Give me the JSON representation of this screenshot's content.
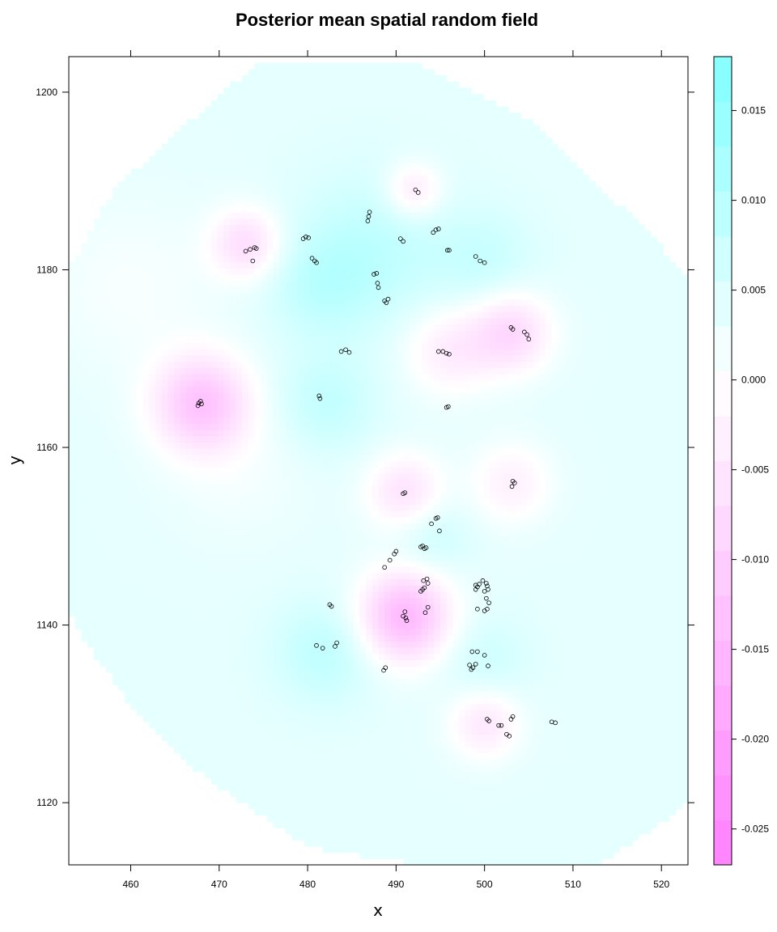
{
  "chart_data": {
    "type": "heatmap",
    "title": "Posterior mean spatial random field",
    "xlabel": "x",
    "ylabel": "y",
    "xlim": [
      453,
      523
    ],
    "ylim": [
      1113,
      1204
    ],
    "x_ticks": [
      460,
      470,
      480,
      490,
      500,
      510,
      520
    ],
    "y_ticks": [
      1120,
      1140,
      1160,
      1180,
      1200
    ],
    "colorbar": {
      "range": [
        -0.027,
        0.018
      ],
      "ticks": [
        0.015,
        0.01,
        0.005,
        0.0,
        -0.005,
        -0.01,
        -0.015,
        -0.02,
        -0.025
      ],
      "tick_labels": [
        "0.015",
        "0.010",
        "0.005",
        "0.000",
        "-0.005",
        "-0.010",
        "-0.015",
        "-0.020",
        "-0.025"
      ],
      "low_color": "#ff80ff",
      "mid_color": "#ffffff",
      "high_color": "#80ffff"
    },
    "domain_polygon": [
      [
        474,
        1203
      ],
      [
        493,
        1203
      ],
      [
        505,
        1197
      ],
      [
        512,
        1190
      ],
      [
        518,
        1185
      ],
      [
        523,
        1179
      ],
      [
        523,
        1120
      ],
      [
        519,
        1117
      ],
      [
        513,
        1113
      ],
      [
        493,
        1113
      ],
      [
        480,
        1115
      ],
      [
        474,
        1119
      ],
      [
        467,
        1124
      ],
      [
        460,
        1131
      ],
      [
        455,
        1138
      ],
      [
        453,
        1142
      ],
      [
        453,
        1180
      ],
      [
        458,
        1189
      ],
      [
        467,
        1197
      ]
    ],
    "field": {
      "background": 0.0035,
      "features": [
        {
          "x": 468,
          "y": 1165,
          "amp": -0.0155,
          "radius": 3.8
        },
        {
          "x": 491,
          "y": 1141,
          "amp": -0.0185,
          "radius": 3.6
        },
        {
          "x": 503,
          "y": 1173,
          "amp": -0.0115,
          "radius": 3.2
        },
        {
          "x": 496,
          "y": 1171,
          "amp": -0.0075,
          "radius": 3.5
        },
        {
          "x": 473,
          "y": 1183,
          "amp": -0.0105,
          "radius": 2.8
        },
        {
          "x": 492,
          "y": 1189,
          "amp": -0.0085,
          "radius": 2.2
        },
        {
          "x": 491,
          "y": 1155,
          "amp": -0.0095,
          "radius": 3.0
        },
        {
          "x": 503,
          "y": 1156,
          "amp": -0.0065,
          "radius": 3.2
        },
        {
          "x": 500,
          "y": 1129,
          "amp": -0.0085,
          "radius": 2.8
        },
        {
          "x": 487,
          "y": 1182,
          "amp": 0.0055,
          "radius": 6.0
        },
        {
          "x": 481,
          "y": 1178,
          "amp": 0.004,
          "radius": 4.0
        },
        {
          "x": 482,
          "y": 1165,
          "amp": 0.005,
          "radius": 4.0
        },
        {
          "x": 500,
          "y": 1181,
          "amp": 0.004,
          "radius": 4.0
        },
        {
          "x": 482,
          "y": 1137,
          "amp": 0.0055,
          "radius": 4.0
        },
        {
          "x": 500,
          "y": 1136,
          "amp": 0.0035,
          "radius": 3.5
        },
        {
          "x": 494,
          "y": 1150,
          "amp": 0.004,
          "radius": 3.0
        },
        {
          "x": 460,
          "y": 1178,
          "amp": -0.0025,
          "radius": 7.0
        },
        {
          "x": 472,
          "y": 1158,
          "amp": -0.002,
          "radius": 6.0
        }
      ]
    },
    "points": [
      [
        492.2,
        1189.0
      ],
      [
        492.5,
        1188.7
      ],
      [
        487.0,
        1186.5
      ],
      [
        486.9,
        1186.0
      ],
      [
        486.8,
        1185.5
      ],
      [
        479.5,
        1183.5
      ],
      [
        479.8,
        1183.7
      ],
      [
        480.1,
        1183.6
      ],
      [
        474.0,
        1182.5
      ],
      [
        473.5,
        1182.3
      ],
      [
        473.0,
        1182.1
      ],
      [
        474.2,
        1182.4
      ],
      [
        473.8,
        1181.0
      ],
      [
        480.5,
        1181.3
      ],
      [
        480.8,
        1181.0
      ],
      [
        481.0,
        1180.8
      ],
      [
        490.5,
        1183.5
      ],
      [
        490.8,
        1183.2
      ],
      [
        494.5,
        1184.5
      ],
      [
        494.2,
        1184.2
      ],
      [
        494.8,
        1184.6
      ],
      [
        495.8,
        1182.2
      ],
      [
        496.0,
        1182.2
      ],
      [
        499.0,
        1181.5
      ],
      [
        499.5,
        1181.0
      ],
      [
        500.0,
        1180.8
      ],
      [
        487.5,
        1179.5
      ],
      [
        487.8,
        1179.6
      ],
      [
        487.9,
        1178.5
      ],
      [
        488.0,
        1178.0
      ],
      [
        488.7,
        1176.5
      ],
      [
        488.9,
        1176.3
      ],
      [
        489.1,
        1176.7
      ],
      [
        503.0,
        1173.5
      ],
      [
        503.2,
        1173.3
      ],
      [
        504.5,
        1173.0
      ],
      [
        504.8,
        1172.7
      ],
      [
        505.0,
        1172.2
      ],
      [
        483.8,
        1170.8
      ],
      [
        484.3,
        1171.0
      ],
      [
        484.7,
        1170.7
      ],
      [
        494.8,
        1170.8
      ],
      [
        495.3,
        1170.8
      ],
      [
        495.7,
        1170.6
      ],
      [
        496.0,
        1170.5
      ],
      [
        481.3,
        1165.8
      ],
      [
        481.4,
        1165.5
      ],
      [
        467.7,
        1165.0
      ],
      [
        467.9,
        1165.2
      ],
      [
        467.6,
        1164.7
      ],
      [
        468.0,
        1164.9
      ],
      [
        495.7,
        1164.5
      ],
      [
        495.9,
        1164.6
      ],
      [
        503.2,
        1156.2
      ],
      [
        503.4,
        1156.0
      ],
      [
        503.1,
        1155.6
      ],
      [
        490.8,
        1154.8
      ],
      [
        491.0,
        1154.9
      ],
      [
        494.5,
        1152.0
      ],
      [
        494.7,
        1152.1
      ],
      [
        494.0,
        1151.4
      ],
      [
        494.9,
        1150.6
      ],
      [
        492.8,
        1148.8
      ],
      [
        493.0,
        1148.9
      ],
      [
        493.2,
        1148.6
      ],
      [
        493.4,
        1148.7
      ],
      [
        489.8,
        1148.0
      ],
      [
        490.0,
        1148.3
      ],
      [
        489.3,
        1147.3
      ],
      [
        488.7,
        1146.5
      ],
      [
        493.1,
        1145.0
      ],
      [
        493.5,
        1145.2
      ],
      [
        493.6,
        1144.7
      ],
      [
        493.2,
        1144.2
      ],
      [
        492.8,
        1143.8
      ],
      [
        493.0,
        1144.0
      ],
      [
        499.0,
        1144.5
      ],
      [
        499.2,
        1144.3
      ],
      [
        499.0,
        1144.0
      ],
      [
        499.4,
        1144.6
      ],
      [
        499.8,
        1145.0
      ],
      [
        500.2,
        1144.7
      ],
      [
        500.3,
        1144.4
      ],
      [
        500.0,
        1143.8
      ],
      [
        500.4,
        1144.0
      ],
      [
        500.2,
        1143.0
      ],
      [
        500.5,
        1142.5
      ],
      [
        499.2,
        1141.8
      ],
      [
        500.0,
        1141.6
      ],
      [
        500.3,
        1141.8
      ],
      [
        493.6,
        1142.0
      ],
      [
        493.3,
        1141.4
      ],
      [
        491.0,
        1141.5
      ],
      [
        490.8,
        1141.0
      ],
      [
        491.1,
        1140.8
      ],
      [
        491.2,
        1140.5
      ],
      [
        482.5,
        1142.3
      ],
      [
        482.7,
        1142.1
      ],
      [
        481.0,
        1137.7
      ],
      [
        481.7,
        1137.4
      ],
      [
        483.3,
        1138.0
      ],
      [
        483.1,
        1137.6
      ],
      [
        498.6,
        1137.0
      ],
      [
        499.2,
        1137.0
      ],
      [
        500.0,
        1136.6
      ],
      [
        498.3,
        1135.5
      ],
      [
        498.7,
        1135.2
      ],
      [
        499.0,
        1135.6
      ],
      [
        498.5,
        1135.0
      ],
      [
        500.4,
        1135.4
      ],
      [
        488.8,
        1135.2
      ],
      [
        488.6,
        1134.9
      ],
      [
        500.3,
        1129.4
      ],
      [
        500.5,
        1129.2
      ],
      [
        501.6,
        1128.7
      ],
      [
        501.9,
        1128.7
      ],
      [
        503.0,
        1129.4
      ],
      [
        503.2,
        1129.7
      ],
      [
        502.5,
        1127.7
      ],
      [
        502.8,
        1127.5
      ],
      [
        507.6,
        1129.1
      ],
      [
        508.0,
        1129.0
      ]
    ]
  }
}
